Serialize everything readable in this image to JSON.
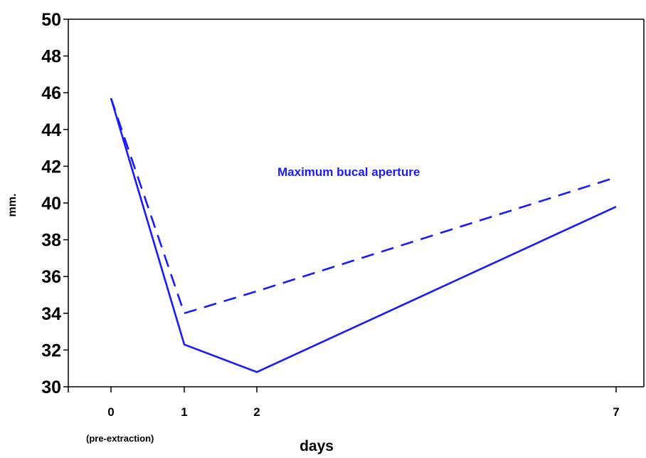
{
  "chart_data": {
    "type": "line",
    "xlabel": "days",
    "ylabel": "mm.",
    "x": [
      0,
      1,
      2,
      7
    ],
    "x_tick_labels": [
      "0",
      "1",
      "2",
      "7"
    ],
    "x_sublabel": "(pre-extraction)",
    "ylim": [
      30,
      50
    ],
    "y_ticks": [
      30,
      32,
      34,
      36,
      38,
      40,
      42,
      44,
      46,
      48,
      50
    ],
    "grid": false,
    "annotation": "Maximum bucal aperture",
    "series": [
      {
        "values": [
          45.7,
          32.3,
          30.8,
          39.8
        ],
        "style": "solid",
        "color": "#1a1aff"
      },
      {
        "values": [
          45.7,
          34.0,
          35.2,
          41.4
        ],
        "style": "dashed",
        "color": "#1a1aff"
      }
    ]
  }
}
